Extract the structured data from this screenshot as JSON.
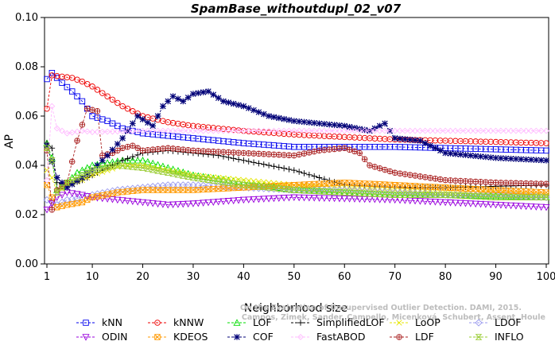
{
  "chart_data": {
    "type": "line",
    "title": "SpamBase_withoutdupl_02_v07",
    "xlabel": "Neighborhood size",
    "ylabel": "AP",
    "xlim": [
      1,
      100
    ],
    "ylim": [
      0.0,
      0.1
    ],
    "xticks": [
      1,
      10,
      20,
      30,
      40,
      50,
      60,
      70,
      80,
      90,
      100
    ],
    "yticks": [
      "0.00",
      "0.02",
      "0.04",
      "0.06",
      "0.08",
      "0.10"
    ],
    "grid": false,
    "legend_position": "bottom",
    "watermark": [
      "Campos, Zimek, Sander, Campello, Micenková, Schubert, Assent, Houle",
      "On the Evaluation of Unsupervised Outlier Detection. DAMI, 2015."
    ],
    "series": [
      {
        "name": "kNN",
        "color": "#0000ee",
        "marker": "square",
        "points": [
          [
            1,
            0.075
          ],
          [
            2,
            0.0775
          ],
          [
            4,
            0.0735
          ],
          [
            6,
            0.07
          ],
          [
            8,
            0.066
          ],
          [
            10,
            0.06
          ],
          [
            13,
            0.058
          ],
          [
            16,
            0.055
          ],
          [
            20,
            0.053
          ],
          [
            30,
            0.051
          ],
          [
            40,
            0.049
          ],
          [
            50,
            0.0475
          ],
          [
            60,
            0.0475
          ],
          [
            70,
            0.0475
          ],
          [
            80,
            0.047
          ],
          [
            90,
            0.0465
          ],
          [
            100,
            0.046
          ]
        ]
      },
      {
        "name": "kNNW",
        "color": "#ee0000",
        "marker": "circle",
        "points": [
          [
            1,
            0.063
          ],
          [
            2,
            0.0765
          ],
          [
            4,
            0.076
          ],
          [
            6,
            0.0755
          ],
          [
            8,
            0.074
          ],
          [
            10,
            0.072
          ],
          [
            13,
            0.068
          ],
          [
            16,
            0.064
          ],
          [
            20,
            0.06
          ],
          [
            25,
            0.0575
          ],
          [
            30,
            0.056
          ],
          [
            40,
            0.054
          ],
          [
            50,
            0.0525
          ],
          [
            60,
            0.0515
          ],
          [
            70,
            0.0505
          ],
          [
            80,
            0.05
          ],
          [
            90,
            0.0495
          ],
          [
            100,
            0.049
          ]
        ]
      },
      {
        "name": "LOF",
        "color": "#00dd00",
        "marker": "triangle-up",
        "points": [
          [
            1,
            0.049
          ],
          [
            2,
            0.043
          ],
          [
            3,
            0.03
          ],
          [
            5,
            0.033
          ],
          [
            7,
            0.037
          ],
          [
            10,
            0.04
          ],
          [
            13,
            0.041
          ],
          [
            16,
            0.042
          ],
          [
            20,
            0.042
          ],
          [
            25,
            0.039
          ],
          [
            30,
            0.036
          ],
          [
            40,
            0.033
          ],
          [
            50,
            0.03
          ],
          [
            60,
            0.029
          ],
          [
            70,
            0.028
          ],
          [
            80,
            0.028
          ],
          [
            90,
            0.0275
          ],
          [
            100,
            0.027
          ]
        ]
      },
      {
        "name": "SimplifiedLOF",
        "color": "#000000",
        "marker": "plus",
        "points": [
          [
            1,
            0.049
          ],
          [
            2,
            0.047
          ],
          [
            3,
            0.033
          ],
          [
            5,
            0.032
          ],
          [
            8,
            0.034
          ],
          [
            10,
            0.036
          ],
          [
            13,
            0.039
          ],
          [
            16,
            0.042
          ],
          [
            20,
            0.045
          ],
          [
            25,
            0.046
          ],
          [
            30,
            0.045
          ],
          [
            35,
            0.044
          ],
          [
            40,
            0.042
          ],
          [
            45,
            0.04
          ],
          [
            50,
            0.038
          ],
          [
            55,
            0.035
          ],
          [
            60,
            0.032
          ],
          [
            70,
            0.031
          ],
          [
            80,
            0.031
          ],
          [
            90,
            0.0315
          ],
          [
            100,
            0.032
          ]
        ]
      },
      {
        "name": "LoOP",
        "color": "#e6e600",
        "marker": "x",
        "points": [
          [
            1,
            0.038
          ],
          [
            2,
            0.035
          ],
          [
            3,
            0.029
          ],
          [
            5,
            0.032
          ],
          [
            8,
            0.034
          ],
          [
            10,
            0.036
          ],
          [
            13,
            0.038
          ],
          [
            16,
            0.04
          ],
          [
            20,
            0.04
          ],
          [
            25,
            0.038
          ],
          [
            30,
            0.036
          ],
          [
            40,
            0.034
          ],
          [
            50,
            0.032
          ],
          [
            60,
            0.031
          ],
          [
            70,
            0.03
          ],
          [
            80,
            0.029
          ],
          [
            90,
            0.029
          ],
          [
            100,
            0.028
          ]
        ]
      },
      {
        "name": "LDOF",
        "color": "#9999ee",
        "marker": "diamond",
        "points": [
          [
            1,
            0.026
          ],
          [
            3,
            0.024
          ],
          [
            5,
            0.026
          ],
          [
            8,
            0.027
          ],
          [
            10,
            0.028
          ],
          [
            15,
            0.03
          ],
          [
            20,
            0.031
          ],
          [
            25,
            0.032
          ],
          [
            30,
            0.032
          ],
          [
            40,
            0.031
          ],
          [
            50,
            0.03
          ],
          [
            60,
            0.03
          ],
          [
            70,
            0.029
          ],
          [
            80,
            0.028
          ],
          [
            90,
            0.028
          ],
          [
            100,
            0.027
          ]
        ]
      },
      {
        "name": "ODIN",
        "color": "#9900dd",
        "marker": "triangle-down",
        "points": [
          [
            1,
            0.022
          ],
          [
            3,
            0.027
          ],
          [
            5,
            0.029
          ],
          [
            8,
            0.028
          ],
          [
            10,
            0.027
          ],
          [
            15,
            0.026
          ],
          [
            20,
            0.025
          ],
          [
            25,
            0.024
          ],
          [
            30,
            0.0245
          ],
          [
            40,
            0.026
          ],
          [
            50,
            0.027
          ],
          [
            60,
            0.0265
          ],
          [
            70,
            0.026
          ],
          [
            80,
            0.025
          ],
          [
            90,
            0.024
          ],
          [
            100,
            0.023
          ]
        ]
      },
      {
        "name": "KDEOS",
        "color": "#ff9900",
        "marker": "square-x",
        "points": [
          [
            1,
            0.032
          ],
          [
            2,
            0.027
          ],
          [
            3,
            0.023
          ],
          [
            5,
            0.024
          ],
          [
            8,
            0.025
          ],
          [
            10,
            0.027
          ],
          [
            15,
            0.029
          ],
          [
            20,
            0.03
          ],
          [
            25,
            0.03
          ],
          [
            30,
            0.03
          ],
          [
            40,
            0.031
          ],
          [
            50,
            0.032
          ],
          [
            60,
            0.033
          ],
          [
            70,
            0.032
          ],
          [
            80,
            0.031
          ],
          [
            90,
            0.03
          ],
          [
            100,
            0.029
          ]
        ]
      },
      {
        "name": "LDF",
        "color": "#aa2222",
        "marker": "circle-plus",
        "points": [
          [
            1,
            0.046
          ],
          [
            2,
            0.022
          ],
          [
            3,
            0.03
          ],
          [
            5,
            0.033
          ],
          [
            7,
            0.05
          ],
          [
            9,
            0.063
          ],
          [
            11,
            0.062
          ],
          [
            12,
            0.044
          ],
          [
            14,
            0.045
          ],
          [
            16,
            0.047
          ],
          [
            18,
            0.048
          ],
          [
            20,
            0.046
          ],
          [
            25,
            0.047
          ],
          [
            30,
            0.046
          ],
          [
            40,
            0.045
          ],
          [
            50,
            0.044
          ],
          [
            55,
            0.046
          ],
          [
            60,
            0.047
          ],
          [
            63,
            0.045
          ],
          [
            65,
            0.04
          ],
          [
            70,
            0.037
          ],
          [
            80,
            0.034
          ],
          [
            90,
            0.033
          ],
          [
            100,
            0.0325
          ]
        ]
      },
      {
        "name": "COF",
        "color": "#000077",
        "marker": "asterisk",
        "points": [
          [
            1,
            0.048
          ],
          [
            3,
            0.035
          ],
          [
            5,
            0.031
          ],
          [
            8,
            0.035
          ],
          [
            10,
            0.038
          ],
          [
            13,
            0.044
          ],
          [
            16,
            0.051
          ],
          [
            19,
            0.06
          ],
          [
            22,
            0.056
          ],
          [
            24,
            0.064
          ],
          [
            26,
            0.068
          ],
          [
            28,
            0.066
          ],
          [
            30,
            0.069
          ],
          [
            33,
            0.07
          ],
          [
            36,
            0.066
          ],
          [
            40,
            0.064
          ],
          [
            45,
            0.06
          ],
          [
            50,
            0.058
          ],
          [
            55,
            0.057
          ],
          [
            60,
            0.056
          ],
          [
            65,
            0.054
          ],
          [
            68,
            0.057
          ],
          [
            70,
            0.051
          ],
          [
            75,
            0.05
          ],
          [
            80,
            0.045
          ],
          [
            90,
            0.043
          ],
          [
            100,
            0.042
          ]
        ]
      },
      {
        "name": "FastABOD",
        "color": "#ffbbff",
        "marker": "diamond-small",
        "points": [
          [
            1,
            0.034
          ],
          [
            2,
            0.064
          ],
          [
            3,
            0.055
          ],
          [
            5,
            0.053
          ],
          [
            8,
            0.054
          ],
          [
            10,
            0.0535
          ],
          [
            20,
            0.054
          ],
          [
            30,
            0.054
          ],
          [
            40,
            0.054
          ],
          [
            50,
            0.054
          ],
          [
            60,
            0.054
          ],
          [
            70,
            0.054
          ],
          [
            80,
            0.054
          ],
          [
            90,
            0.054
          ],
          [
            100,
            0.054
          ]
        ]
      },
      {
        "name": "INFLO",
        "color": "#99cc33",
        "marker": "hourglass",
        "points": [
          [
            1,
            0.047
          ],
          [
            2,
            0.042
          ],
          [
            3,
            0.029
          ],
          [
            5,
            0.033
          ],
          [
            8,
            0.036
          ],
          [
            10,
            0.038
          ],
          [
            15,
            0.04
          ],
          [
            20,
            0.039
          ],
          [
            25,
            0.037
          ],
          [
            30,
            0.035
          ],
          [
            40,
            0.032
          ],
          [
            50,
            0.03
          ],
          [
            60,
            0.029
          ],
          [
            70,
            0.028
          ],
          [
            80,
            0.028
          ],
          [
            90,
            0.027
          ],
          [
            100,
            0.027
          ]
        ]
      }
    ],
    "legend_order": [
      "kNN",
      "kNNW",
      "LOF",
      "SimplifiedLOF",
      "LoOP",
      "LDOF",
      "ODIN",
      "KDEOS",
      "COF",
      "FastABOD",
      "LDF",
      "INFLO"
    ]
  }
}
